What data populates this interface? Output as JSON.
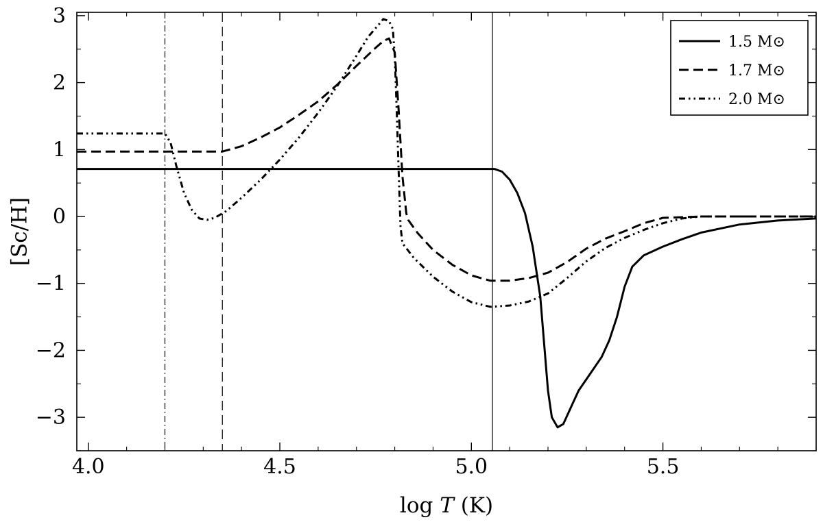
{
  "chart_data": {
    "type": "line",
    "xlabel_prefix": "log ",
    "xlabel_var": "T",
    "xlabel_suffix": " (K)",
    "ylabel": "[Sc/H]",
    "xlim": [
      3.97,
      5.9
    ],
    "ylim": [
      -3.5,
      3.05
    ],
    "xticks": [
      {
        "v": 4.0,
        "label": "4.0"
      },
      {
        "v": 4.5,
        "label": "4.5"
      },
      {
        "v": 5.0,
        "label": "5.0"
      },
      {
        "v": 5.5,
        "label": "5.5"
      }
    ],
    "yticks": [
      {
        "v": -3,
        "label": "−3"
      },
      {
        "v": -2,
        "label": "−2"
      },
      {
        "v": -1,
        "label": "−1"
      },
      {
        "v": 0,
        "label": "0"
      },
      {
        "v": 1,
        "label": "1"
      },
      {
        "v": 2,
        "label": "2"
      },
      {
        "v": 3,
        "label": "3"
      }
    ],
    "legend_position": "top-right",
    "series": [
      {
        "name": "1.5 M⊙",
        "style": "solid",
        "points": [
          [
            3.97,
            0.71
          ],
          [
            5.06,
            0.71
          ],
          [
            5.08,
            0.67
          ],
          [
            5.1,
            0.55
          ],
          [
            5.12,
            0.35
          ],
          [
            5.14,
            0.05
          ],
          [
            5.16,
            -0.45
          ],
          [
            5.18,
            -1.2
          ],
          [
            5.19,
            -1.9
          ],
          [
            5.2,
            -2.6
          ],
          [
            5.21,
            -3.0
          ],
          [
            5.225,
            -3.15
          ],
          [
            5.24,
            -3.1
          ],
          [
            5.26,
            -2.85
          ],
          [
            5.28,
            -2.6
          ],
          [
            5.31,
            -2.35
          ],
          [
            5.34,
            -2.1
          ],
          [
            5.36,
            -1.85
          ],
          [
            5.38,
            -1.5
          ],
          [
            5.4,
            -1.05
          ],
          [
            5.42,
            -0.75
          ],
          [
            5.45,
            -0.58
          ],
          [
            5.5,
            -0.45
          ],
          [
            5.55,
            -0.34
          ],
          [
            5.6,
            -0.24
          ],
          [
            5.7,
            -0.12
          ],
          [
            5.8,
            -0.06
          ],
          [
            5.9,
            -0.03
          ]
        ]
      },
      {
        "name": "1.7 M⊙",
        "style": "dashed",
        "points": [
          [
            3.97,
            0.97
          ],
          [
            4.35,
            0.97
          ],
          [
            4.4,
            1.05
          ],
          [
            4.45,
            1.18
          ],
          [
            4.5,
            1.33
          ],
          [
            4.55,
            1.52
          ],
          [
            4.6,
            1.72
          ],
          [
            4.65,
            1.97
          ],
          [
            4.7,
            2.25
          ],
          [
            4.75,
            2.52
          ],
          [
            4.77,
            2.62
          ],
          [
            4.785,
            2.66
          ],
          [
            4.8,
            2.45
          ],
          [
            4.81,
            1.6
          ],
          [
            4.82,
            0.6
          ],
          [
            4.83,
            0.05
          ],
          [
            4.835,
            -0.05
          ],
          [
            4.86,
            -0.25
          ],
          [
            4.9,
            -0.5
          ],
          [
            4.95,
            -0.72
          ],
          [
            5.0,
            -0.88
          ],
          [
            5.05,
            -0.96
          ],
          [
            5.1,
            -0.96
          ],
          [
            5.15,
            -0.92
          ],
          [
            5.2,
            -0.84
          ],
          [
            5.25,
            -0.68
          ],
          [
            5.3,
            -0.48
          ],
          [
            5.35,
            -0.33
          ],
          [
            5.4,
            -0.22
          ],
          [
            5.45,
            -0.1
          ],
          [
            5.5,
            -0.02
          ],
          [
            5.6,
            0.0
          ],
          [
            5.9,
            0.0
          ]
        ]
      },
      {
        "name": "2.0 M⊙",
        "style": "dashdotdot",
        "points": [
          [
            3.97,
            1.24
          ],
          [
            4.2,
            1.24
          ],
          [
            4.215,
            1.1
          ],
          [
            4.23,
            0.75
          ],
          [
            4.25,
            0.35
          ],
          [
            4.27,
            0.1
          ],
          [
            4.29,
            -0.03
          ],
          [
            4.31,
            -0.05
          ],
          [
            4.33,
            -0.02
          ],
          [
            4.36,
            0.08
          ],
          [
            4.4,
            0.28
          ],
          [
            4.45,
            0.55
          ],
          [
            4.5,
            0.85
          ],
          [
            4.55,
            1.18
          ],
          [
            4.6,
            1.55
          ],
          [
            4.65,
            1.95
          ],
          [
            4.7,
            2.4
          ],
          [
            4.73,
            2.68
          ],
          [
            4.76,
            2.88
          ],
          [
            4.77,
            2.95
          ],
          [
            4.785,
            2.92
          ],
          [
            4.795,
            2.8
          ],
          [
            4.8,
            2.4
          ],
          [
            4.805,
            1.6
          ],
          [
            4.81,
            0.7
          ],
          [
            4.815,
            -0.15
          ],
          [
            4.82,
            -0.4
          ],
          [
            4.85,
            -0.62
          ],
          [
            4.9,
            -0.9
          ],
          [
            4.95,
            -1.12
          ],
          [
            5.0,
            -1.28
          ],
          [
            5.05,
            -1.35
          ],
          [
            5.1,
            -1.33
          ],
          [
            5.15,
            -1.27
          ],
          [
            5.2,
            -1.15
          ],
          [
            5.25,
            -0.92
          ],
          [
            5.3,
            -0.67
          ],
          [
            5.35,
            -0.47
          ],
          [
            5.4,
            -0.32
          ],
          [
            5.45,
            -0.2
          ],
          [
            5.5,
            -0.1
          ],
          [
            5.55,
            -0.03
          ],
          [
            5.6,
            0.0
          ],
          [
            5.9,
            0.0
          ]
        ]
      }
    ],
    "vlines": [
      {
        "x": 4.2,
        "style": "dashdot"
      },
      {
        "x": 4.35,
        "style": "dashed"
      },
      {
        "x": 5.055,
        "style": "solid"
      }
    ]
  }
}
